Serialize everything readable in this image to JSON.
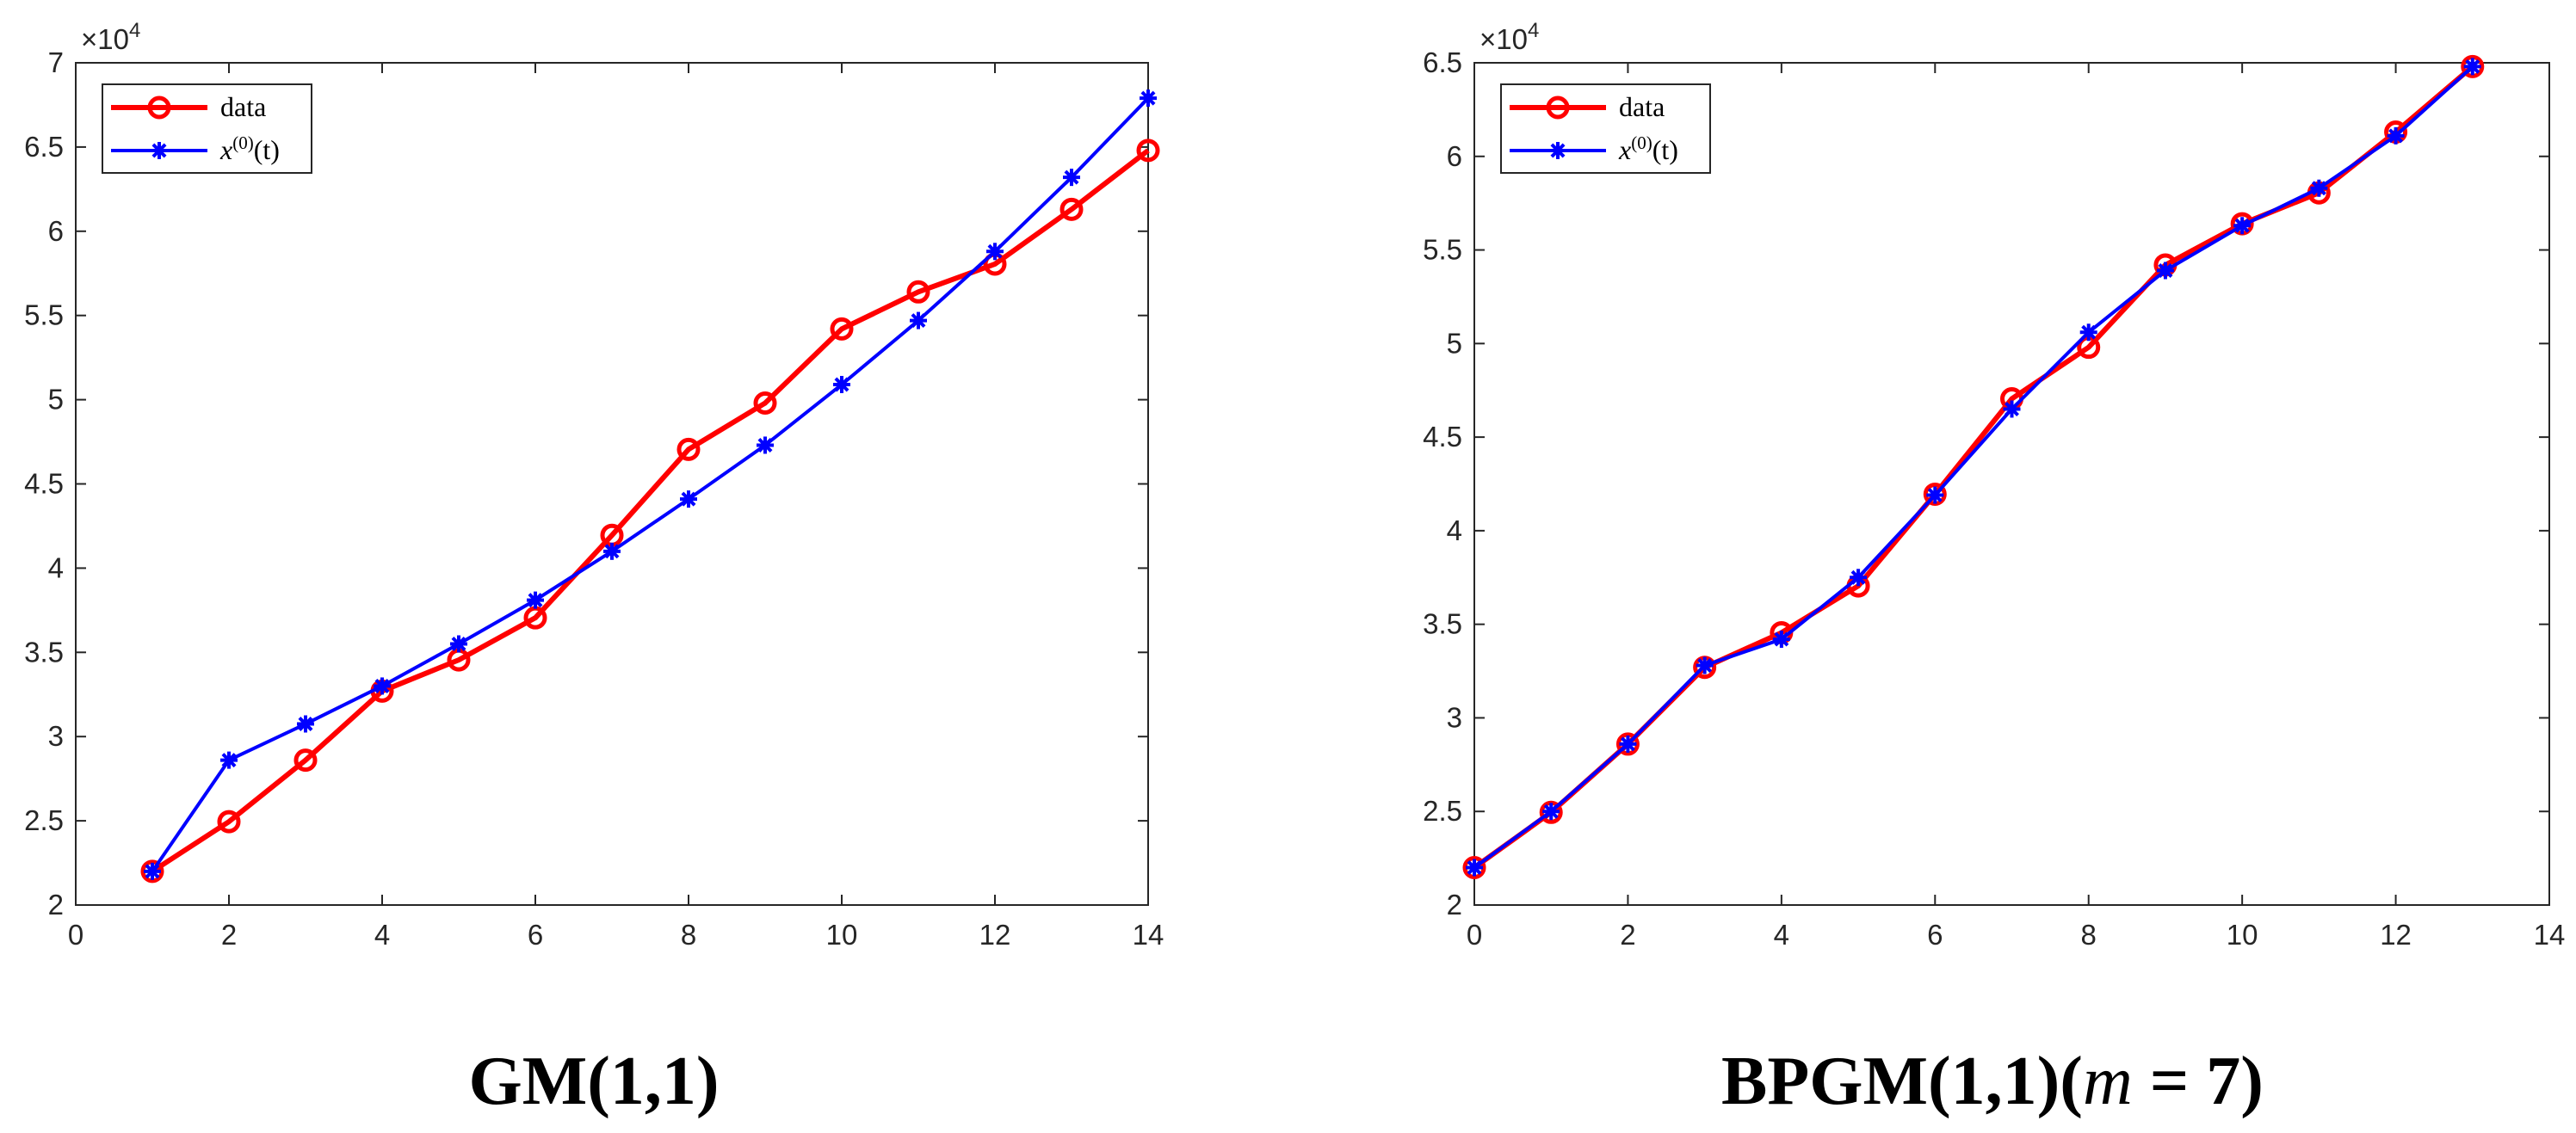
{
  "chart_data": [
    {
      "type": "line",
      "caption": "GM(1,1)",
      "xlim": [
        0,
        14
      ],
      "ylim": [
        20000,
        70000
      ],
      "xticks": [
        "0",
        "2",
        "4",
        "6",
        "8",
        "10",
        "12",
        "14"
      ],
      "yticks": [
        "2",
        "2.5",
        "3",
        "3.5",
        "4",
        "4.5",
        "5",
        "5.5",
        "6",
        "6.5",
        "7"
      ],
      "exponent_label": "×10",
      "exponent_power": "4",
      "grid": false,
      "legend_position": "top-left",
      "series": [
        {
          "name": "data",
          "color": "#ff0000",
          "marker": "circle",
          "x": [
            1,
            2,
            3,
            4,
            5,
            6,
            7,
            8,
            9,
            10,
            11,
            12,
            13,
            14
          ],
          "y": [
            22000,
            24950,
            28600,
            32700,
            34550,
            37050,
            41950,
            47050,
            49800,
            54200,
            56400,
            58050,
            61300,
            64800
          ]
        },
        {
          "name": "x",
          "legend_sup": "(0)",
          "legend_tail": "(t)",
          "color": "#0000ff",
          "marker": "asterisk",
          "x": [
            1,
            2,
            3,
            4,
            5,
            6,
            7,
            8,
            9,
            10,
            11,
            12,
            13,
            14
          ],
          "y": [
            22000,
            28600,
            30750,
            33000,
            35500,
            38100,
            41000,
            44100,
            47300,
            50900,
            54700,
            58800,
            63200,
            67900
          ]
        }
      ]
    },
    {
      "type": "line",
      "caption_prefix": "BPGM(1,1)(",
      "caption_italic": "m",
      "caption_suffix": " = 7)",
      "xlim": [
        0,
        14
      ],
      "ylim": [
        20000,
        65000
      ],
      "xticks": [
        "0",
        "2",
        "4",
        "6",
        "8",
        "10",
        "12",
        "14"
      ],
      "yticks": [
        "2",
        "2.5",
        "3",
        "3.5",
        "4",
        "4.5",
        "5",
        "5.5",
        "6",
        "6.5"
      ],
      "exponent_label": "×10",
      "exponent_power": "4",
      "grid": false,
      "legend_position": "top-left",
      "series": [
        {
          "name": "data",
          "color": "#ff0000",
          "marker": "circle",
          "x": [
            0,
            1,
            2,
            3,
            4,
            5,
            6,
            7,
            8,
            9,
            10,
            11,
            12,
            13
          ],
          "y": [
            22000,
            24950,
            28600,
            32700,
            34550,
            37050,
            41950,
            47050,
            49800,
            54200,
            56400,
            58050,
            61300,
            64800
          ]
        },
        {
          "name": "x",
          "legend_sup": "(0)",
          "legend_tail": "(t)",
          "color": "#0000ff",
          "marker": "asterisk",
          "x": [
            0,
            1,
            2,
            3,
            4,
            5,
            6,
            7,
            8,
            9,
            10,
            11,
            12,
            13
          ],
          "y": [
            22000,
            25000,
            28600,
            32800,
            34200,
            37500,
            41900,
            46500,
            50600,
            53900,
            56300,
            58300,
            61100,
            64800
          ]
        }
      ]
    }
  ]
}
